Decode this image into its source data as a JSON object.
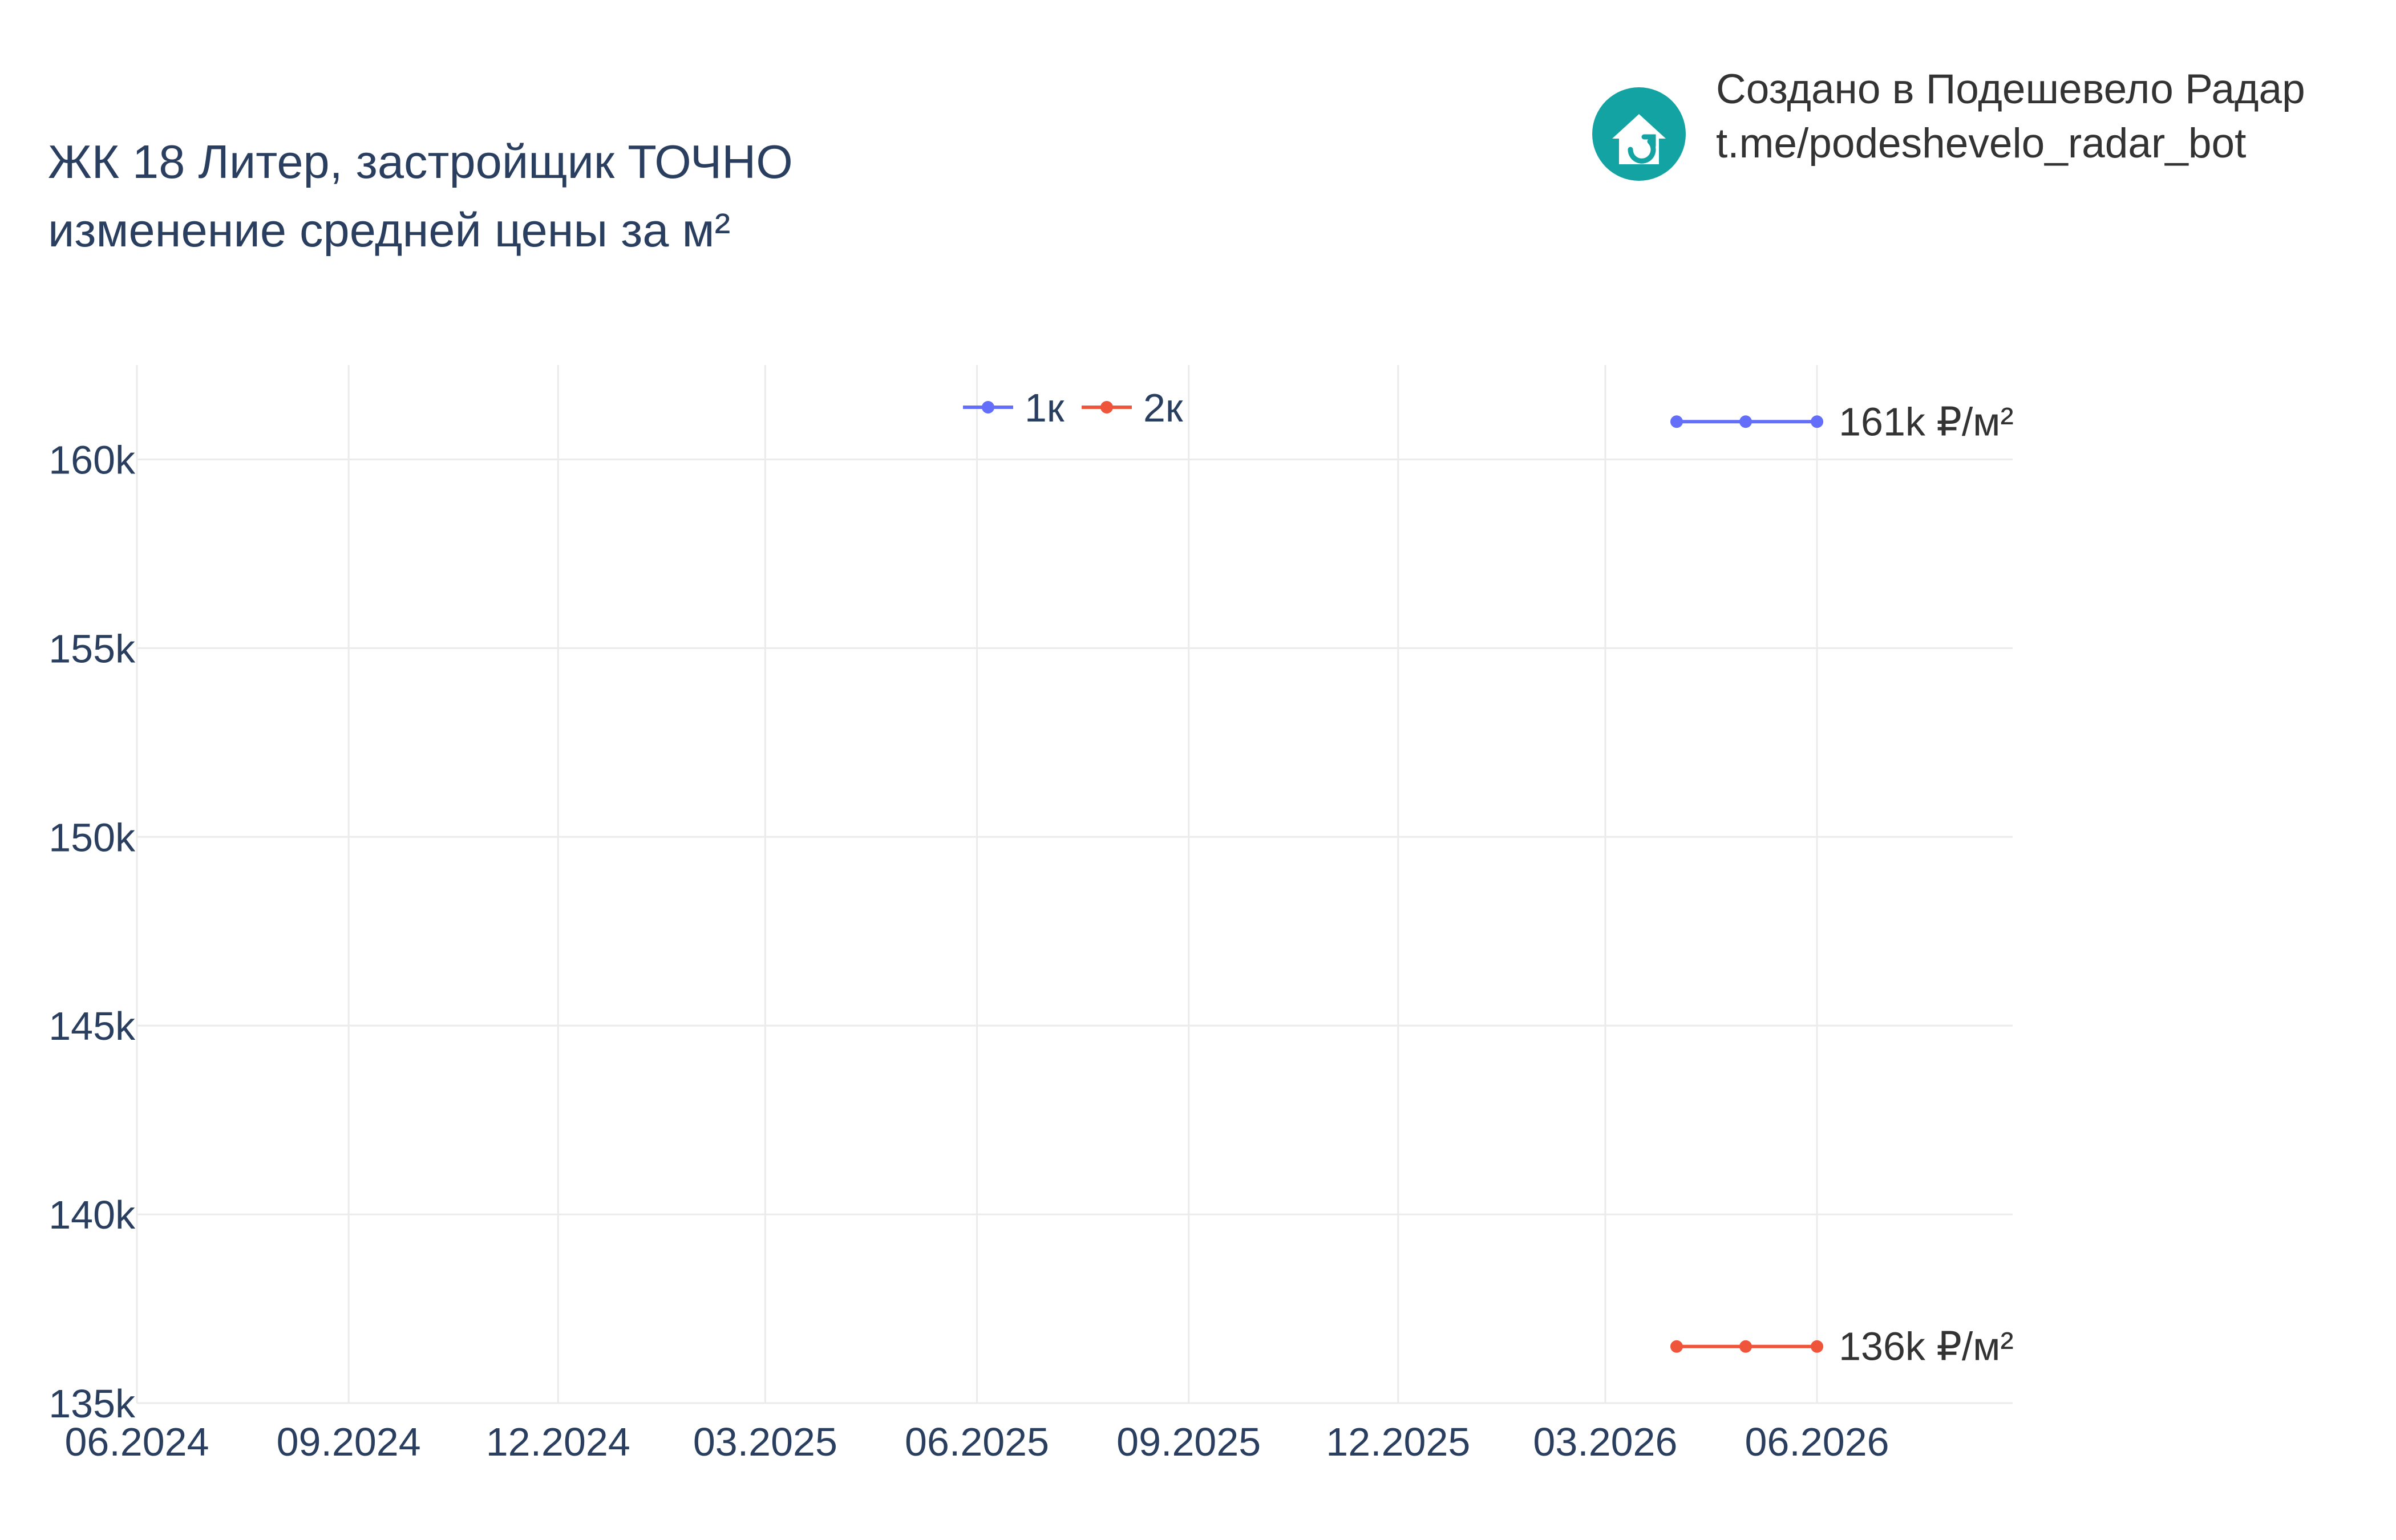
{
  "header": {
    "title_line1": "ЖК 18 Литер, застройщик ТОЧНО",
    "title_line2": "изменение средней цены за м²"
  },
  "branding": {
    "line1": "Создано в Подешевело Радар",
    "line2": "t.me/podeshevelo_radar_bot",
    "logo_icon": "house-arrow-icon",
    "logo_color": "#14a3a3"
  },
  "chart_data": {
    "type": "line",
    "x_type": "date",
    "xlim": [
      "2024-06-01",
      "2026-08-25"
    ],
    "ylim": [
      135000,
      162500
    ],
    "x_ticks": [
      {
        "date": "2024-06-01",
        "label": "06.2024"
      },
      {
        "date": "2024-09-01",
        "label": "09.2024"
      },
      {
        "date": "2024-12-01",
        "label": "12.2024"
      },
      {
        "date": "2025-03-01",
        "label": "03.2025"
      },
      {
        "date": "2025-06-01",
        "label": "06.2025"
      },
      {
        "date": "2025-09-01",
        "label": "09.2025"
      },
      {
        "date": "2025-12-01",
        "label": "12.2025"
      },
      {
        "date": "2026-03-01",
        "label": "03.2026"
      },
      {
        "date": "2026-06-01",
        "label": "06.2026"
      }
    ],
    "y_ticks": [
      {
        "value": 135000,
        "label": "135k"
      },
      {
        "value": 140000,
        "label": "140k"
      },
      {
        "value": 145000,
        "label": "145k"
      },
      {
        "value": 150000,
        "label": "150k"
      },
      {
        "value": 155000,
        "label": "155k"
      },
      {
        "value": 160000,
        "label": "160k"
      }
    ],
    "grid": true,
    "legend": {
      "position": "top-center",
      "orientation": "horizontal"
    },
    "series": [
      {
        "name": "1к",
        "color": "#636efa",
        "x": [
          "2026-04-01",
          "2026-05-01",
          "2026-06-01"
        ],
        "y": [
          161000,
          161000,
          161000
        ],
        "end_label": "161k ₽/м²"
      },
      {
        "name": "2к",
        "color": "#ef553b",
        "x": [
          "2026-04-01",
          "2026-05-01",
          "2026-06-01"
        ],
        "y": [
          136500,
          136500,
          136500
        ],
        "end_label": "136k ₽/м²"
      }
    ]
  }
}
